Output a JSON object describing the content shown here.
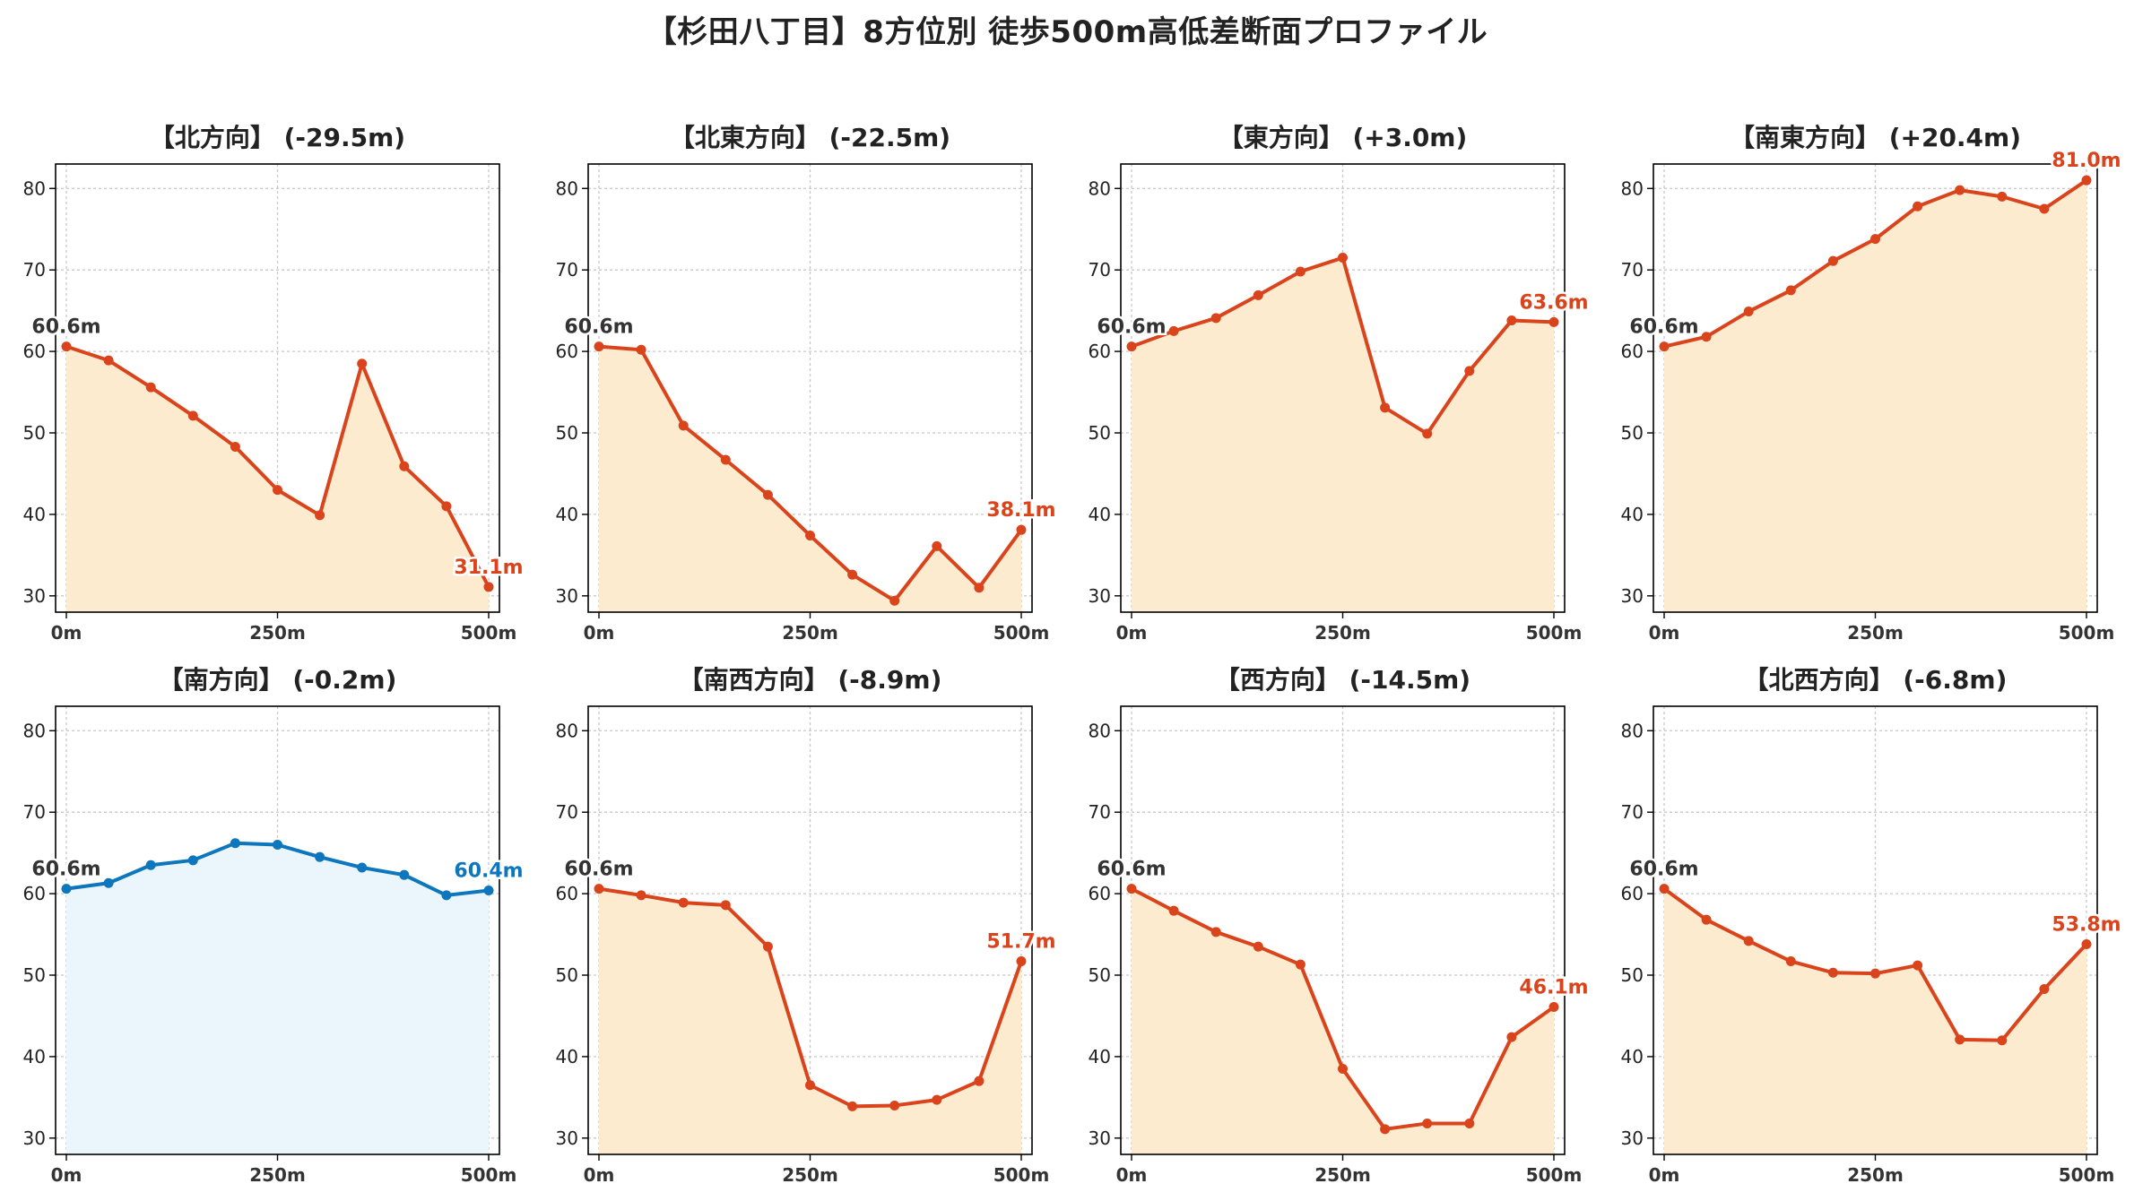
{
  "title": "【杉田八丁目】8方位別 徒歩500m高低差断面プロファイル",
  "colors": {
    "default_line": "#d9441c",
    "default_fill": "#fdebd0",
    "flat_line": "#0e76bd",
    "flat_fill": "#eaf6fc",
    "start_label": "#333333",
    "grid": "#c8c8c8"
  },
  "chart_data": [
    {
      "type": "line",
      "title": "【北方向】 (-29.5m)",
      "x": [
        0,
        50,
        100,
        150,
        200,
        250,
        300,
        350,
        400,
        450,
        500
      ],
      "values": [
        60.6,
        58.9,
        55.6,
        52.1,
        48.3,
        43.0,
        39.9,
        58.5,
        45.9,
        41.0,
        31.1
      ],
      "ylim": [
        28,
        83
      ],
      "yticks": [
        30,
        40,
        50,
        60,
        70,
        80
      ],
      "xticks": [
        0,
        250,
        500
      ],
      "xtick_labels": [
        "0m",
        "250m",
        "500m"
      ],
      "start_label": "60.6m",
      "end_label": "31.1m",
      "style": "default",
      "grid": true
    },
    {
      "type": "line",
      "title": "【北東方向】 (-22.5m)",
      "x": [
        0,
        50,
        100,
        150,
        200,
        250,
        300,
        350,
        400,
        450,
        500
      ],
      "values": [
        60.6,
        60.2,
        50.9,
        46.7,
        42.4,
        37.4,
        32.6,
        29.4,
        36.1,
        31.0,
        38.1
      ],
      "ylim": [
        28,
        83
      ],
      "yticks": [
        30,
        40,
        50,
        60,
        70,
        80
      ],
      "xticks": [
        0,
        250,
        500
      ],
      "xtick_labels": [
        "0m",
        "250m",
        "500m"
      ],
      "start_label": "60.6m",
      "end_label": "38.1m",
      "style": "default",
      "grid": true
    },
    {
      "type": "line",
      "title": "【東方向】 (+3.0m)",
      "x": [
        0,
        50,
        100,
        150,
        200,
        250,
        300,
        350,
        400,
        450,
        500
      ],
      "values": [
        60.6,
        62.5,
        64.1,
        66.9,
        69.8,
        71.5,
        53.1,
        49.9,
        57.6,
        63.8,
        63.6
      ],
      "ylim": [
        28,
        83
      ],
      "yticks": [
        30,
        40,
        50,
        60,
        70,
        80
      ],
      "xticks": [
        0,
        250,
        500
      ],
      "xtick_labels": [
        "0m",
        "250m",
        "500m"
      ],
      "start_label": "60.6m",
      "end_label": "63.6m",
      "style": "default",
      "grid": true
    },
    {
      "type": "line",
      "title": "【南東方向】 (+20.4m)",
      "x": [
        0,
        50,
        100,
        150,
        200,
        250,
        300,
        350,
        400,
        450,
        500
      ],
      "values": [
        60.6,
        61.8,
        64.9,
        67.5,
        71.1,
        73.8,
        77.8,
        79.8,
        79.0,
        77.5,
        81.0
      ],
      "ylim": [
        28,
        83
      ],
      "yticks": [
        30,
        40,
        50,
        60,
        70,
        80
      ],
      "xticks": [
        0,
        250,
        500
      ],
      "xtick_labels": [
        "0m",
        "250m",
        "500m"
      ],
      "start_label": "60.6m",
      "end_label": "81.0m",
      "style": "default",
      "grid": true
    },
    {
      "type": "line",
      "title": "【南方向】 (-0.2m)",
      "x": [
        0,
        50,
        100,
        150,
        200,
        250,
        300,
        350,
        400,
        450,
        500
      ],
      "values": [
        60.6,
        61.3,
        63.5,
        64.1,
        66.2,
        66.0,
        64.5,
        63.2,
        62.3,
        59.8,
        60.4
      ],
      "ylim": [
        28,
        83
      ],
      "yticks": [
        30,
        40,
        50,
        60,
        70,
        80
      ],
      "xticks": [
        0,
        250,
        500
      ],
      "xtick_labels": [
        "0m",
        "250m",
        "500m"
      ],
      "start_label": "60.6m",
      "end_label": "60.4m",
      "style": "flat",
      "grid": true
    },
    {
      "type": "line",
      "title": "【南西方向】 (-8.9m)",
      "x": [
        0,
        50,
        100,
        150,
        200,
        250,
        300,
        350,
        400,
        450,
        500
      ],
      "values": [
        60.6,
        59.8,
        58.9,
        58.6,
        53.5,
        36.5,
        33.9,
        34.0,
        34.7,
        37.0,
        51.7
      ],
      "ylim": [
        28,
        83
      ],
      "yticks": [
        30,
        40,
        50,
        60,
        70,
        80
      ],
      "xticks": [
        0,
        250,
        500
      ],
      "xtick_labels": [
        "0m",
        "250m",
        "500m"
      ],
      "start_label": "60.6m",
      "end_label": "51.7m",
      "style": "default",
      "grid": true
    },
    {
      "type": "line",
      "title": "【西方向】 (-14.5m)",
      "x": [
        0,
        50,
        100,
        150,
        200,
        250,
        300,
        350,
        400,
        450,
        500
      ],
      "values": [
        60.6,
        57.9,
        55.3,
        53.5,
        51.3,
        38.5,
        31.1,
        31.8,
        31.8,
        42.4,
        46.1
      ],
      "ylim": [
        28,
        83
      ],
      "yticks": [
        30,
        40,
        50,
        60,
        70,
        80
      ],
      "xticks": [
        0,
        250,
        500
      ],
      "xtick_labels": [
        "0m",
        "250m",
        "500m"
      ],
      "start_label": "60.6m",
      "end_label": "46.1m",
      "style": "default",
      "grid": true
    },
    {
      "type": "line",
      "title": "【北西方向】 (-6.8m)",
      "x": [
        0,
        50,
        100,
        150,
        200,
        250,
        300,
        350,
        400,
        450,
        500
      ],
      "values": [
        60.6,
        56.8,
        54.2,
        51.7,
        50.3,
        50.2,
        51.2,
        42.1,
        42.0,
        48.3,
        53.8
      ],
      "ylim": [
        28,
        83
      ],
      "yticks": [
        30,
        40,
        50,
        60,
        70,
        80
      ],
      "xticks": [
        0,
        250,
        500
      ],
      "xtick_labels": [
        "0m",
        "250m",
        "500m"
      ],
      "start_label": "60.6m",
      "end_label": "53.8m",
      "style": "default",
      "grid": true
    }
  ]
}
